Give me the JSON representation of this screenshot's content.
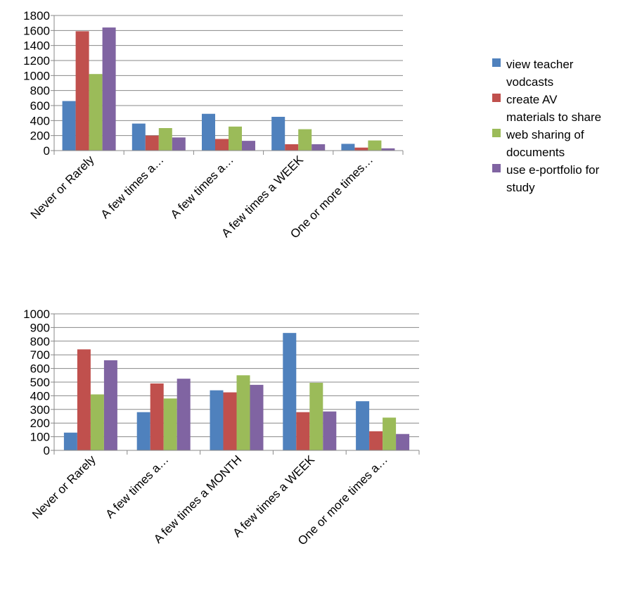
{
  "chart_data": [
    {
      "type": "bar",
      "title": "",
      "xlabel": "",
      "ylabel": "",
      "ylim": [
        0,
        1800
      ],
      "yticks": [
        0,
        200,
        400,
        600,
        800,
        1000,
        1200,
        1400,
        1600,
        1800
      ],
      "grid": true,
      "categories": [
        "Never or Rarely",
        "A few times a…",
        "A few times a…",
        "A few times a WEEK",
        "One or more times…"
      ],
      "series": [
        {
          "name": "view teacher vodcasts",
          "color": "#4F81BD",
          "values": [
            660,
            360,
            490,
            450,
            90
          ]
        },
        {
          "name": "create AV materials to share",
          "color": "#C0504D",
          "values": [
            1590,
            200,
            155,
            85,
            40
          ]
        },
        {
          "name": "web sharing of documents",
          "color": "#9BBB59",
          "values": [
            1020,
            300,
            320,
            285,
            135
          ]
        },
        {
          "name": "use e-portfolio for study",
          "color": "#8064A2",
          "values": [
            1640,
            175,
            130,
            85,
            30
          ]
        }
      ]
    },
    {
      "type": "bar",
      "title": "",
      "xlabel": "",
      "ylabel": "",
      "ylim": [
        0,
        1000
      ],
      "yticks": [
        0,
        100,
        200,
        300,
        400,
        500,
        600,
        700,
        800,
        900,
        1000
      ],
      "grid": true,
      "categories": [
        "Never or Rarely",
        "A few times a…",
        "A few times a MONTH",
        "A few times a WEEK",
        "One or more times a…"
      ],
      "series": [
        {
          "name": "view teacher vodcasts",
          "color": "#4F81BD",
          "values": [
            130,
            280,
            440,
            860,
            360
          ]
        },
        {
          "name": "create AV materials to share",
          "color": "#C0504D",
          "values": [
            740,
            490,
            425,
            280,
            140
          ]
        },
        {
          "name": "web sharing of documents",
          "color": "#9BBB59",
          "values": [
            410,
            380,
            550,
            495,
            240
          ]
        },
        {
          "name": "use e-portfolio for study",
          "color": "#8064A2",
          "values": [
            660,
            525,
            480,
            285,
            120
          ]
        }
      ]
    }
  ],
  "legend": {
    "position": "right",
    "items": [
      {
        "lines": [
          "view teacher",
          "vodcasts"
        ],
        "color": "#4F81BD"
      },
      {
        "lines": [
          "create AV",
          "materials to share"
        ],
        "color": "#C0504D"
      },
      {
        "lines": [
          "web sharing of",
          "documents"
        ],
        "color": "#9BBB59"
      },
      {
        "lines": [
          "use e-portfolio for",
          "study"
        ],
        "color": "#8064A2"
      }
    ]
  }
}
